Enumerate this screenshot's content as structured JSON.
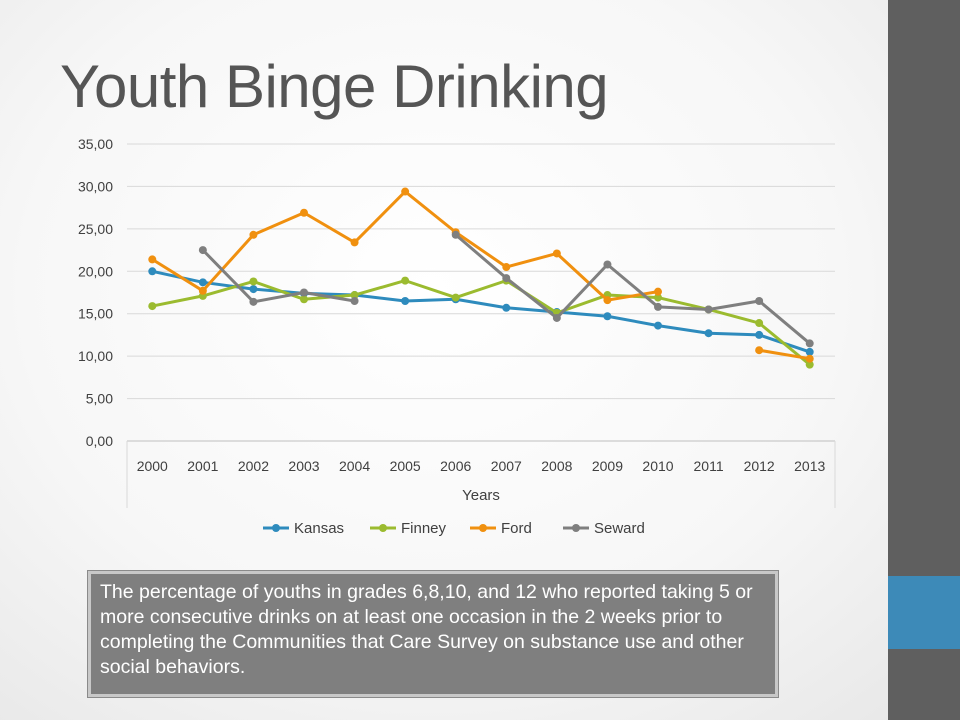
{
  "slide": {
    "title": "Youth Binge Drinking",
    "caption": "The percentage of youths in grades 6,8,10, and 12 who reported taking 5 or more consecutive drinks on at least one occasion in the 2 weeks prior to completing the Communities that Care Survey on substance use and other social behaviors.",
    "colors": {
      "sidebar": "#5f5f5f",
      "accent": "#3d8ab8",
      "caption_bg": "#7f7f7f"
    }
  },
  "chart_data": {
    "type": "line",
    "title": "",
    "xlabel": "Years",
    "ylabel": "",
    "categories": [
      "2000",
      "2001",
      "2002",
      "2003",
      "2004",
      "2005",
      "2006",
      "2007",
      "2008",
      "2009",
      "2010",
      "2011",
      "2012",
      "2013"
    ],
    "y_ticks": [
      "0,00",
      "5,00",
      "10,00",
      "15,00",
      "20,00",
      "25,00",
      "30,00",
      "35,00"
    ],
    "ylim": [
      0,
      35
    ],
    "grid": true,
    "legend": "bottom",
    "series": [
      {
        "name": "Kansas",
        "color": "#2e8bbd",
        "values": [
          20.0,
          18.7,
          17.9,
          17.4,
          17.2,
          16.5,
          16.7,
          15.7,
          15.2,
          14.7,
          13.6,
          12.7,
          12.5,
          10.5
        ]
      },
      {
        "name": "Finney",
        "color": "#9bbb2f",
        "values": [
          15.9,
          17.1,
          18.8,
          16.7,
          17.2,
          18.9,
          16.9,
          18.9,
          15.1,
          17.2,
          16.9,
          15.5,
          13.9,
          9.0
        ]
      },
      {
        "name": "Ford",
        "color": "#f0900f",
        "values": [
          21.4,
          17.7,
          24.3,
          26.9,
          23.4,
          29.4,
          24.6,
          20.5,
          22.1,
          16.6,
          17.6,
          null,
          10.7,
          9.7
        ]
      },
      {
        "name": "Seward",
        "color": "#7f7f7f",
        "values": [
          null,
          22.5,
          16.4,
          17.5,
          16.5,
          null,
          24.3,
          19.2,
          14.5,
          20.8,
          15.8,
          15.5,
          16.5,
          11.5
        ]
      }
    ]
  }
}
